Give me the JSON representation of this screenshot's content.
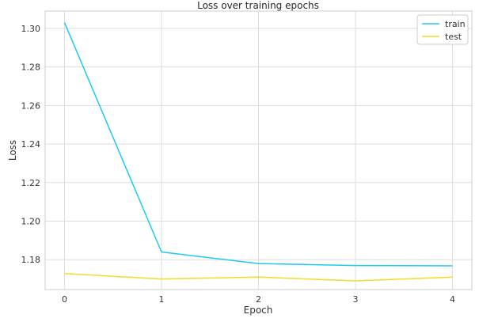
{
  "chart_data": {
    "type": "line",
    "title": "Loss over training epochs",
    "xlabel": "Epoch",
    "ylabel": "Loss",
    "x": [
      0,
      1,
      2,
      3,
      4
    ],
    "xticks": [
      "0",
      "1",
      "2",
      "3",
      "4"
    ],
    "yticks": [
      "1.18",
      "1.20",
      "1.22",
      "1.24",
      "1.26",
      "1.28",
      "1.30"
    ],
    "ylim": [
      1.1645,
      1.309
    ],
    "xlim": [
      -0.2,
      4.2
    ],
    "grid": true,
    "legend_position": "top-right",
    "series": [
      {
        "name": "train",
        "color": "#1ec8f5",
        "values": [
          1.303,
          1.184,
          1.178,
          1.177,
          1.1768
        ]
      },
      {
        "name": "test",
        "color": "#f2dc2a",
        "values": [
          1.1728,
          1.17,
          1.171,
          1.169,
          1.171
        ]
      }
    ]
  }
}
